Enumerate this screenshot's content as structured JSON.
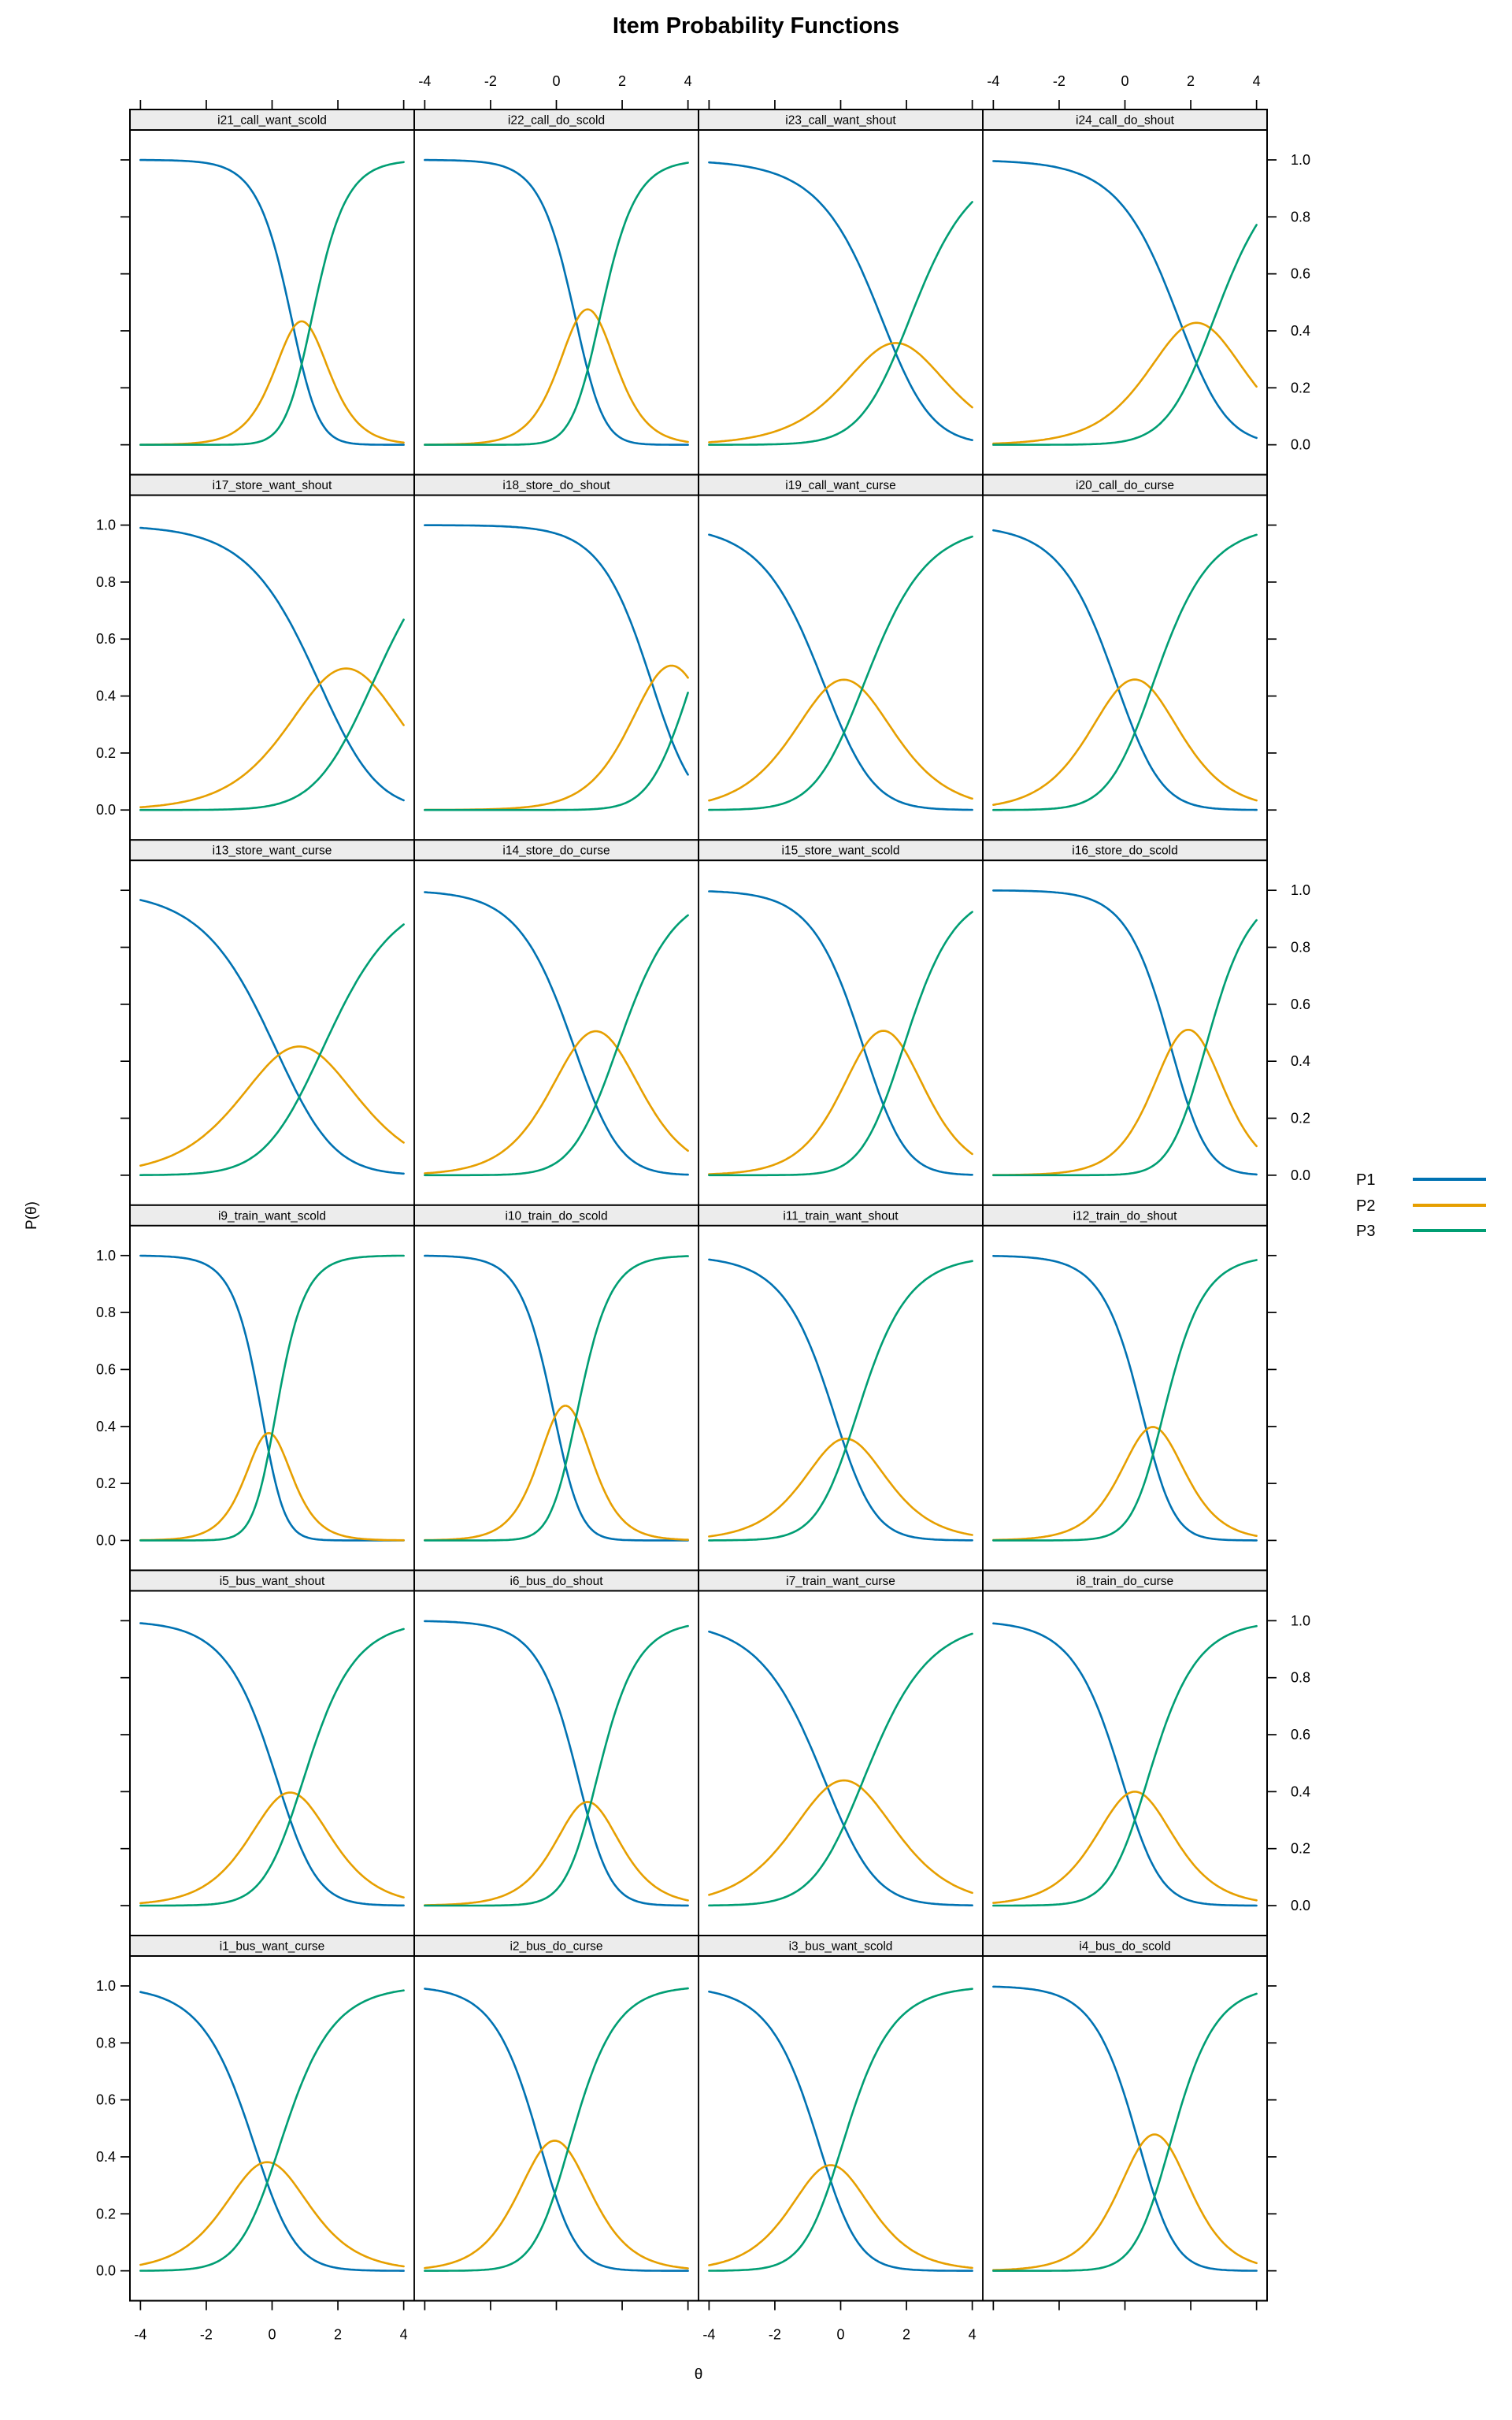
{
  "title": "Item Probability Functions",
  "x_axis_title": "θ",
  "y_axis_title": "P(θ)",
  "legend": {
    "position": "right-middle",
    "items": [
      {
        "label": "P1",
        "color": "#0072B2"
      },
      {
        "label": "P2",
        "color": "#E69F00"
      },
      {
        "label": "P3",
        "color": "#009E73"
      }
    ]
  },
  "axes": {
    "x_ticks": [
      -4,
      -2,
      0,
      2,
      4
    ],
    "y_ticks": [
      0.0,
      0.2,
      0.4,
      0.6,
      0.8,
      1.0
    ],
    "x_range": [
      -4.32,
      4.32
    ],
    "y_range": [
      -0.105,
      1.105
    ],
    "x_labels_top_cols": [
      1,
      3
    ],
    "x_labels_bottom_cols": [
      0,
      2
    ],
    "y_labels_left_rows": [
      1,
      3,
      5
    ],
    "y_labels_right_rows": [
      0,
      2,
      4
    ]
  },
  "chart_data": {
    "type": "line",
    "title": "Item Probability Functions",
    "xlabel": "θ",
    "ylabel": "P(θ)",
    "x_sampling": {
      "from": -4,
      "to": 4,
      "step": 0.05
    },
    "series_names": [
      "P1",
      "P2",
      "P3"
    ],
    "model": "3-category item response curves: P1=1/D, P2=exp(a(t-b1))/D, P3=exp(a(t-b1)+a(t-b2))/D, D=sum",
    "grid": {
      "rows": 6,
      "cols": 4,
      "order": "left-to-right, top-to-bottom"
    },
    "panels": [
      {
        "label": "i21_call_want_scold",
        "a": 1.7,
        "b1": 0.65,
        "b2": 1.15,
        "p2_peak": 0.44
      },
      {
        "label": "i22_call_do_scold",
        "a": 1.7,
        "b1": 0.6,
        "b2": 1.3,
        "p2_peak": 0.48
      },
      {
        "label": "i23_call_want_shout",
        "a": 0.85,
        "b1": 1.55,
        "b2": 1.8,
        "p2_peak": 0.36
      },
      {
        "label": "i24_call_do_shout",
        "a": 0.95,
        "b1": 1.75,
        "b2": 2.6,
        "p2_peak": 0.42
      },
      {
        "label": "i17_store_want_shout",
        "a": 0.85,
        "b1": 1.45,
        "b2": 3.05,
        "p2_peak": 0.5
      },
      {
        "label": "i18_store_do_shout",
        "a": 1.2,
        "b1": 2.9,
        "b2": 4.1,
        "p2_peak": 0.51
      },
      {
        "label": "i19_call_want_curse",
        "a": 0.95,
        "b1": -0.45,
        "b2": 0.65,
        "p2_peak": 0.46
      },
      {
        "label": "i20_call_do_curse",
        "a": 1.05,
        "b1": -0.2,
        "b2": 0.8,
        "p2_peak": 0.46
      },
      {
        "label": "i13_store_want_curse",
        "a": 0.8,
        "b1": 0.2,
        "b2": 1.45,
        "p2_peak": 0.45
      },
      {
        "label": "i14_store_do_curse",
        "a": 1.1,
        "b1": 0.55,
        "b2": 1.85,
        "p2_peak": 0.5
      },
      {
        "label": "i15_store_want_scold",
        "a": 1.2,
        "b1": 0.7,
        "b2": 1.9,
        "p2_peak": 0.51
      },
      {
        "label": "i16_store_do_scold",
        "a": 1.4,
        "b1": 1.4,
        "b2": 2.45,
        "p2_peak": 0.51
      },
      {
        "label": "i9_train_want_scold",
        "a": 1.9,
        "b1": -0.2,
        "b2": 0.0,
        "p2_peak": 0.38
      },
      {
        "label": "i10_train_do_scold",
        "a": 1.8,
        "b1": -0.05,
        "b2": 0.6,
        "p2_peak": 0.47
      },
      {
        "label": "i11_train_want_shout",
        "a": 1.05,
        "b1": 0.05,
        "b2": 0.25,
        "p2_peak": 0.36
      },
      {
        "label": "i12_train_do_shout",
        "a": 1.4,
        "b1": 0.65,
        "b2": 1.05,
        "p2_peak": 0.4
      },
      {
        "label": "i5_bus_want_shout",
        "a": 1.1,
        "b1": 0.3,
        "b2": 0.8,
        "p2_peak": 0.4
      },
      {
        "label": "i6_bus_do_shout",
        "a": 1.35,
        "b1": 0.85,
        "b2": 1.05,
        "p2_peak": 0.36
      },
      {
        "label": "i7_train_want_curse",
        "a": 0.9,
        "b1": -0.4,
        "b2": 0.6,
        "p2_peak": 0.44
      },
      {
        "label": "i8_train_do_curse",
        "a": 1.15,
        "b1": 0.05,
        "b2": 0.55,
        "p2_peak": 0.4
      },
      {
        "label": "i1_bus_want_curse",
        "a": 1.05,
        "b1": -0.35,
        "b2": 0.05,
        "p2_peak": 0.38
      },
      {
        "label": "i2_bus_do_curse",
        "a": 1.3,
        "b1": -0.45,
        "b2": 0.35,
        "p2_peak": 0.46
      },
      {
        "label": "i3_bus_want_scold",
        "a": 1.1,
        "b1": -0.45,
        "b2": -0.15,
        "p2_peak": 0.37
      },
      {
        "label": "i4_bus_do_scold",
        "a": 1.35,
        "b1": 0.45,
        "b2": 1.35,
        "p2_peak": 0.48
      }
    ],
    "strip_fill": "#ECECEC",
    "legend_entries": [
      "P1",
      "P2",
      "P3"
    ]
  }
}
